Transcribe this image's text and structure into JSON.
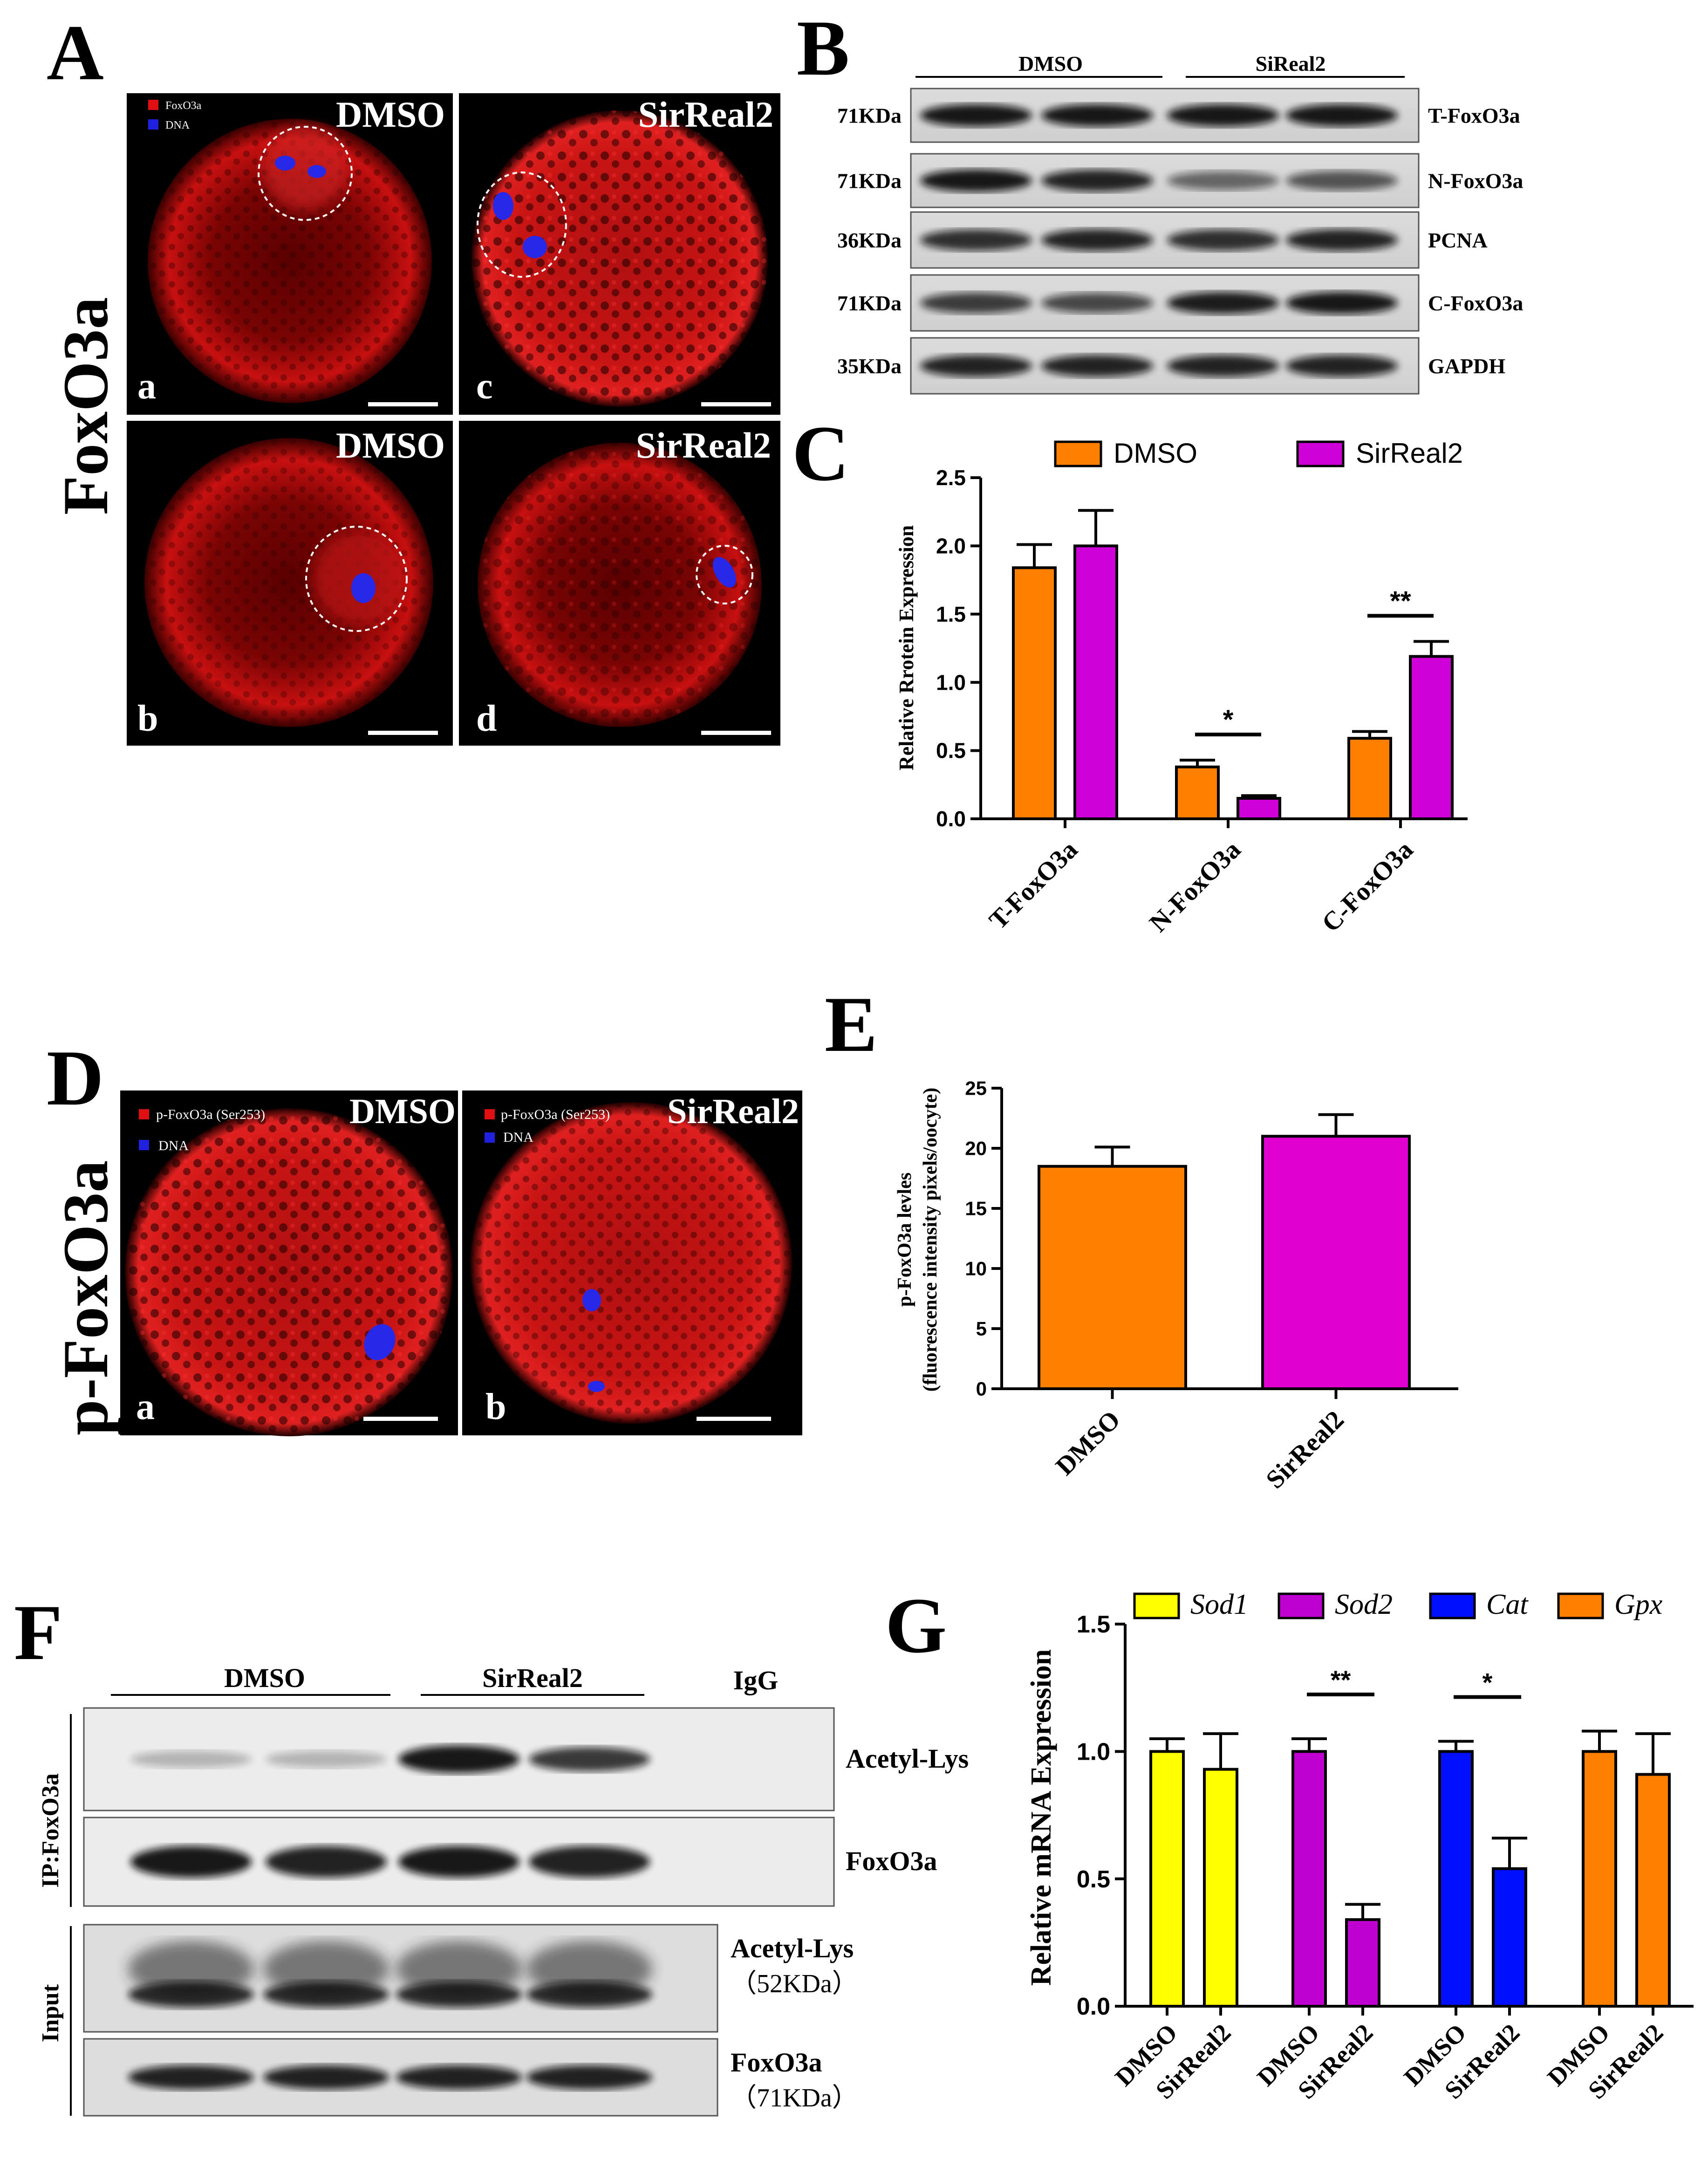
{
  "panelA": {
    "letter": "A",
    "side_label": "FoxO3a",
    "legend": [
      "FoxO3a",
      "DNA"
    ],
    "legend_colors": [
      "#e01010",
      "#2020e0"
    ],
    "cells": [
      {
        "group": "DMSO",
        "sub": "a"
      },
      {
        "group": "SirReal2",
        "sub": "c"
      },
      {
        "group": "DMSO",
        "sub": "b"
      },
      {
        "group": "SirReal2",
        "sub": "d"
      }
    ]
  },
  "panelB": {
    "letter": "B",
    "groups": [
      "DMSO",
      "SiReal2"
    ],
    "rows": [
      {
        "kda": "71KDa",
        "name": "T-FoxO3a"
      },
      {
        "kda": "71KDa",
        "name": "N-FoxO3a"
      },
      {
        "kda": "36KDa",
        "name": "PCNA"
      },
      {
        "kda": "71KDa",
        "name": "C-FoxO3a"
      },
      {
        "kda": "35KDa",
        "name": "GAPDH"
      }
    ]
  },
  "panelD": {
    "letter": "D",
    "side_label": "p-FoxO3a",
    "legend": [
      "p-FoxO3a (Ser253)",
      "DNA"
    ],
    "cells": [
      {
        "group": "DMSO",
        "sub": "a"
      },
      {
        "group": "SirReal2",
        "sub": "b"
      }
    ]
  },
  "panelF": {
    "letter": "F",
    "groups": [
      "DMSO",
      "SirReal2",
      "IgG"
    ],
    "ip_label": "IP:FoxO3a",
    "input_label": "Input",
    "ip_rows": [
      "Acetyl-Lys",
      "FoxO3a"
    ],
    "input_rows": [
      {
        "name": "Acetyl-Lys",
        "kda": "（52KDa）"
      },
      {
        "name": "FoxO3a",
        "kda": "（71KDa）"
      }
    ]
  },
  "chart_data": [
    {
      "panel": "C",
      "type": "bar",
      "categories": [
        "T-FoxO3a",
        "N-FoxO3a",
        "C-FoxO3a"
      ],
      "series": [
        {
          "name": "DMSO",
          "color": "#ff8000",
          "values": [
            1.84,
            0.38,
            0.59
          ],
          "errors": [
            0.17,
            0.05,
            0.05
          ]
        },
        {
          "name": "SirReal2",
          "color": "#d000d8",
          "values": [
            2.0,
            0.15,
            1.19
          ],
          "errors": [
            0.26,
            0.02,
            0.11
          ]
        }
      ],
      "significance": [
        {
          "category": "N-FoxO3a",
          "label": "*"
        },
        {
          "category": "C-FoxO3a",
          "label": "**"
        }
      ],
      "ylabel": "Relative Rrotein Expression",
      "ylim": [
        0,
        2.5
      ],
      "yticks": [
        "0.0",
        "0.5",
        "1.0",
        "1.5",
        "2.0",
        "2.5"
      ],
      "legend_position": "top"
    },
    {
      "panel": "E",
      "type": "bar",
      "categories": [
        "DMSO",
        "SirReal2"
      ],
      "values": [
        18.5,
        21.0
      ],
      "errors": [
        1.6,
        1.8
      ],
      "colors": [
        "#ff8000",
        "#e000d0"
      ],
      "ylabel": "p-FoxO3a levles",
      "ylabel2": "(fluorescence intensity pixels/oocyte)",
      "ylim": [
        0,
        25
      ],
      "yticks": [
        "0",
        "5",
        "10",
        "15",
        "20",
        "25"
      ]
    },
    {
      "panel": "G",
      "type": "bar",
      "legend": [
        {
          "name": "Sod1",
          "color": "#ffff00"
        },
        {
          "name": "Sod2",
          "color": "#c000d0"
        },
        {
          "name": "Cat",
          "color": "#0010ff"
        },
        {
          "name": "Gpx",
          "color": "#ff8000"
        }
      ],
      "categories": [
        "DMSO",
        "SirReal2",
        "DMSO",
        "SirReal2",
        "DMSO",
        "SirReal2",
        "DMSO",
        "SirReal2"
      ],
      "values": [
        1.0,
        0.93,
        1.0,
        0.34,
        1.0,
        0.54,
        1.0,
        0.91
      ],
      "errors": [
        0.05,
        0.14,
        0.05,
        0.06,
        0.04,
        0.12,
        0.08,
        0.16
      ],
      "significance": [
        {
          "gene": "Sod2",
          "label": "**"
        },
        {
          "gene": "Cat",
          "label": "*"
        }
      ],
      "ylabel": "Relative mRNA Expression",
      "ylim": [
        0,
        1.5
      ],
      "yticks": [
        "0.0",
        "0.5",
        "1.0",
        "1.5"
      ],
      "legend_position": "top"
    }
  ]
}
